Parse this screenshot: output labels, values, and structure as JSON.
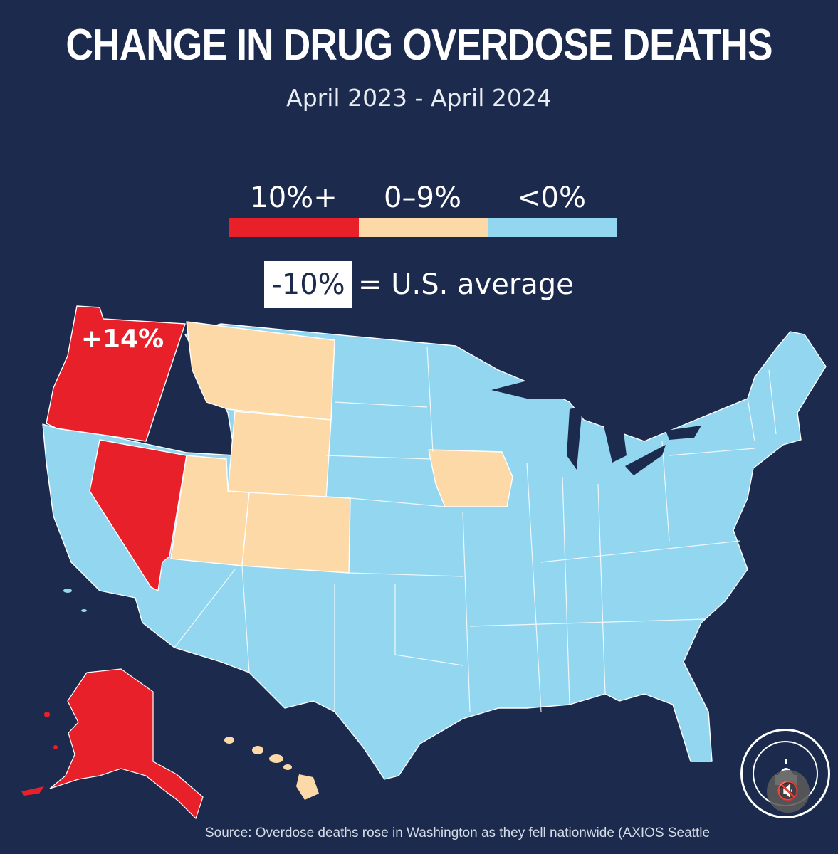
{
  "title": "CHANGE IN DRUG OVERDOSE DEATHS",
  "subtitle": "April 2023 - April 2024",
  "legend": [
    {
      "label": "10%+",
      "color": "#e8202a"
    },
    {
      "label": "0–9%",
      "color": "#fcd9a7"
    },
    {
      "label": "<0%",
      "color": "#93d6f0"
    }
  ],
  "us_average": {
    "value": "-10%",
    "label": "= U.S. average"
  },
  "map": {
    "callout": "+14%",
    "categories": {
      "10%+": [
        "Washington",
        "Oregon",
        "Nevada",
        "Alaska"
      ],
      "0–9%": [
        "Montana",
        "Wyoming",
        "Utah",
        "Colorado",
        "Iowa",
        "Hawaii"
      ],
      "<0%": [
        "all other states"
      ]
    }
  },
  "source": "Source: Overdose deaths rose in Washington as they fell nationwide (AXIOS Seattle",
  "mute_icon": "speaker-muted-icon"
}
